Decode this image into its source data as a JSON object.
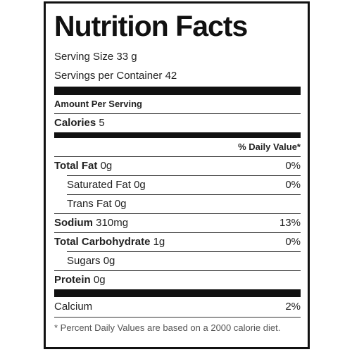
{
  "title": "Nutrition Facts",
  "serving_size": "Serving Size 33 g",
  "servings_per_container": "Servings per Container 42",
  "amount_per_serving": "Amount Per Serving",
  "calories": {
    "label": "Calories",
    "value": "5"
  },
  "daily_value_header": "% Daily Value*",
  "nutrients": [
    {
      "name": "Total Fat",
      "amount": "0g",
      "dv": "0%",
      "bold": true,
      "indent": false
    },
    {
      "name": "Saturated Fat",
      "amount": "0g",
      "dv": "0%",
      "bold": false,
      "indent": true
    },
    {
      "name": "Trans Fat",
      "amount": "0g",
      "bold": false,
      "indent": true
    },
    {
      "name": "Sodium",
      "amount": "310mg",
      "dv": "13%",
      "bold": true,
      "indent": false
    },
    {
      "name": "Total Carbohydrate",
      "amount": "1g",
      "dv": "0%",
      "bold": true,
      "indent": false
    },
    {
      "name": "Sugars",
      "amount": "0g",
      "bold": false,
      "indent": true
    },
    {
      "name": "Protein",
      "amount": "0g",
      "bold": true,
      "indent": false
    }
  ],
  "vitamins": [
    {
      "name": "Calcium",
      "dv": "2%"
    }
  ],
  "footnote": "* Percent Daily Values are based on a 2000 calorie diet."
}
